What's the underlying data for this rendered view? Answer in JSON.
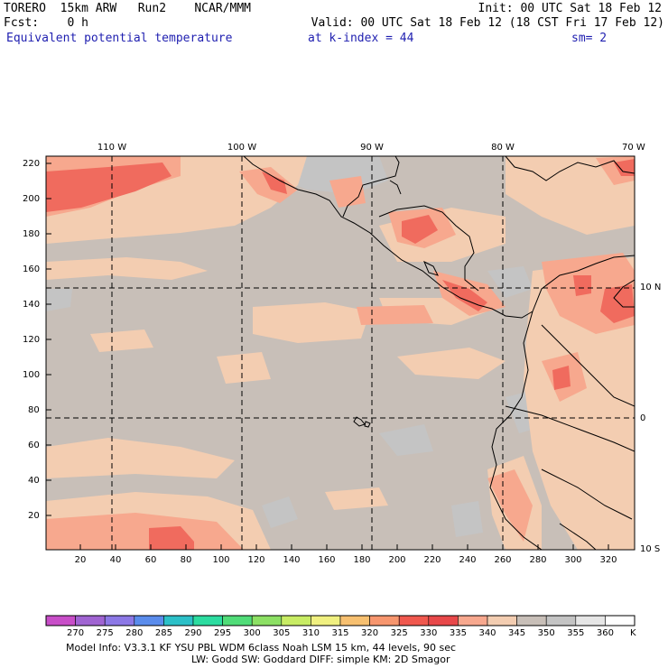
{
  "header": {
    "model": "TORERO",
    "resolution": "15km ARW",
    "run": "Run2",
    "org": "NCAR/MMM",
    "init": "Init: 00 UTC Sat 18 Feb 12",
    "fcst_label": "Fcst:",
    "fcst_value": "0 h",
    "valid": "Valid: 00 UTC Sat 18 Feb 12 (18 CST Fri 17 Feb 12)",
    "field": "Equivalent potential temperature",
    "level": "at k-index =  44",
    "smoothing": "sm= 2"
  },
  "map": {
    "top_lon_labels": [
      "110 W",
      "100 W",
      "90 W",
      "80 W",
      "70 W"
    ],
    "right_lat_labels": [
      "10 N",
      "0",
      "10 S"
    ],
    "left_grid_labels": [
      "220",
      "200",
      "180",
      "160",
      "140",
      "120",
      "100",
      "80",
      "60",
      "40",
      "20"
    ],
    "bottom_grid_labels": [
      "20",
      "40",
      "60",
      "80",
      "100",
      "120",
      "140",
      "160",
      "180",
      "200",
      "220",
      "240",
      "260",
      "280",
      "300",
      "320"
    ],
    "colors": {
      "background_field": "#c8bfb8",
      "ocean_gray": "#c4c4c4",
      "warm_light": "#f3cdb1",
      "warm_mid": "#f7a88e",
      "warm_strong": "#f06b5e",
      "warm_red": "#e8484a",
      "coastline": "#000000",
      "grid": "#000000"
    }
  },
  "colorbar": {
    "labels": [
      "270",
      "275",
      "280",
      "285",
      "290",
      "295",
      "300",
      "305",
      "310",
      "315",
      "320",
      "325",
      "330",
      "335",
      "340",
      "345",
      "350",
      "355",
      "360"
    ],
    "unit": "K",
    "colors": [
      "#c84ec8",
      "#a064d2",
      "#8c78e6",
      "#5a8cec",
      "#2cc0c8",
      "#2cdca0",
      "#50dc78",
      "#8ce064",
      "#c8ec64",
      "#f0f080",
      "#f7c070",
      "#f7966e",
      "#f0584e",
      "#e8484a",
      "#f7a88e",
      "#f3cdb1",
      "#c8bfb8",
      "#c4c4c4",
      "#e6e6e6",
      "#ffffff"
    ]
  },
  "footer": {
    "line1": "Model Info: V3.3.1    KF      YSU PBL   WDM 6class  Noah LSM  15 km,    44 levels,   90 sec",
    "line2": "LW: Godd SW: Goddard DIFF: simple KM: 2D Smagor"
  }
}
